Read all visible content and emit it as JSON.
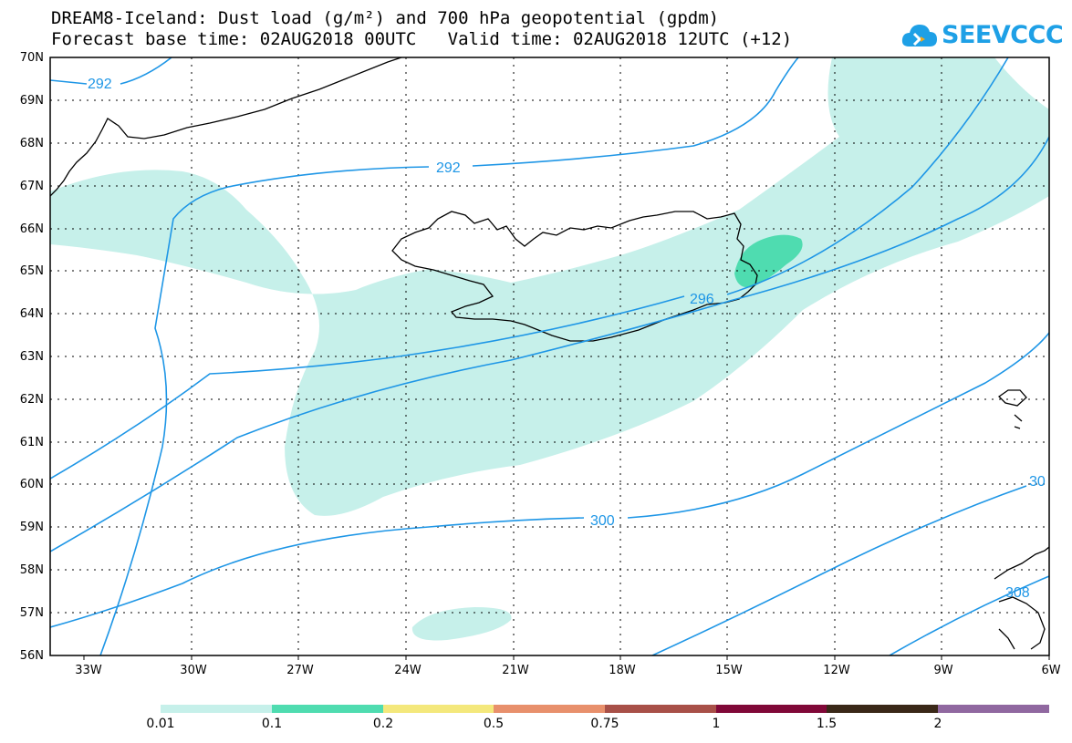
{
  "header": {
    "title_line1": "DREAM8-Iceland: Dust load (g/m²) and 700 hPa geopotential (gpdm)",
    "title_line2": "Forecast base time: 02AUG2018 00UTC   Valid time: 02AUG2018 12UTC (+12)"
  },
  "logo": {
    "text": "SEEVCCC",
    "icon": "cloud-icon"
  },
  "axes": {
    "lat_labels": [
      "70N",
      "69N",
      "68N",
      "67N",
      "66N",
      "65N",
      "64N",
      "63N",
      "62N",
      "61N",
      "60N",
      "59N",
      "58N",
      "57N",
      "56N"
    ],
    "lon_labels": [
      "33W",
      "30W",
      "27W",
      "24W",
      "21W",
      "18W",
      "15W",
      "12W",
      "9W",
      "6W"
    ]
  },
  "contours": {
    "labels": [
      "292",
      "292",
      "296",
      "300",
      "30",
      "308"
    ]
  },
  "colorbar": {
    "labels": [
      "0.01",
      "0.1",
      "0.2",
      "0.5",
      "0.75",
      "1",
      "1.5",
      "2"
    ],
    "colors": [
      "#c6f0ea",
      "#4fdcb0",
      "#f4e87c",
      "#e8906c",
      "#a85048",
      "#800838",
      "#3a2818",
      "#9068a0"
    ]
  }
}
